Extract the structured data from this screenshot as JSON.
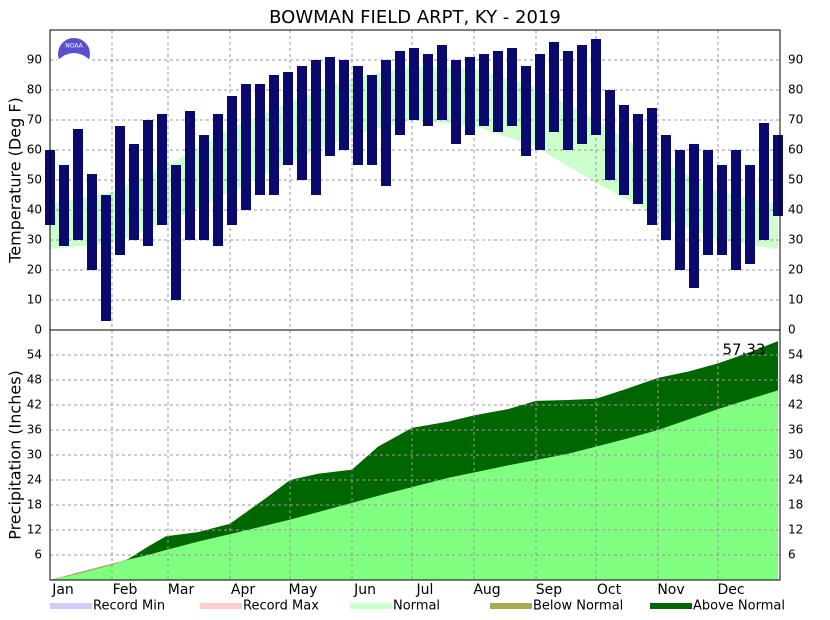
{
  "title": "BOWMAN FIELD ARPT, KY - 2019",
  "logo_text": "NOAA",
  "legend": [
    {
      "label": "Record Min",
      "color": "#ccccff"
    },
    {
      "label": "Record Max",
      "color": "#ffcccc"
    },
    {
      "label": "Normal",
      "color": "#ccffcc"
    },
    {
      "label": "Below Normal",
      "color": "#aaaa55"
    },
    {
      "label": "Above Normal",
      "color": "#006600"
    }
  ],
  "chart_data": [
    {
      "type": "range_bar",
      "ylabel": "Temperature (Deg F)",
      "xlim": [
        1,
        366
      ],
      "ylim": [
        0,
        100
      ],
      "yticks": [
        0,
        10,
        20,
        30,
        40,
        50,
        60,
        70,
        80,
        90
      ],
      "grid": true,
      "color": "#0a0a6e",
      "normal_color": "#ccffcc",
      "x": [
        1,
        8,
        15,
        22,
        29,
        36,
        43,
        50,
        57,
        64,
        71,
        78,
        85,
        92,
        99,
        106,
        113,
        120,
        127,
        134,
        141,
        148,
        155,
        162,
        169,
        176,
        183,
        190,
        197,
        204,
        211,
        218,
        225,
        232,
        239,
        246,
        253,
        260,
        267,
        274,
        281,
        288,
        295,
        302,
        309,
        316,
        323,
        330,
        337,
        344,
        351,
        358,
        365
      ],
      "high": [
        60,
        55,
        67,
        52,
        45,
        68,
        62,
        70,
        72,
        55,
        73,
        65,
        72,
        78,
        82,
        82,
        85,
        86,
        88,
        90,
        91,
        90,
        88,
        85,
        90,
        93,
        94,
        92,
        95,
        90,
        91,
        92,
        93,
        94,
        88,
        92,
        96,
        93,
        95,
        97,
        80,
        75,
        72,
        74,
        65,
        60,
        62,
        60,
        55,
        60,
        55,
        69,
        65
      ],
      "low": [
        35,
        28,
        30,
        20,
        3,
        25,
        30,
        28,
        35,
        10,
        30,
        30,
        28,
        35,
        40,
        45,
        45,
        55,
        50,
        45,
        58,
        60,
        55,
        55,
        48,
        65,
        70,
        68,
        70,
        62,
        65,
        68,
        66,
        68,
        58,
        60,
        66,
        60,
        62,
        65,
        50,
        45,
        42,
        35,
        30,
        20,
        14,
        25,
        25,
        20,
        22,
        30,
        38
      ],
      "normal_x": [
        1,
        32,
        60,
        91,
        121,
        152,
        182,
        213,
        244,
        274,
        305,
        335,
        365
      ],
      "normal_high": [
        42,
        46,
        55,
        67,
        76,
        84,
        88,
        87,
        81,
        70,
        57,
        46,
        42
      ],
      "normal_low": [
        27,
        29,
        36,
        46,
        56,
        65,
        70,
        68,
        61,
        49,
        38,
        30,
        27
      ]
    },
    {
      "type": "cumulative_area",
      "ylabel": "Precipitation (Inches)",
      "xlim": [
        1,
        366
      ],
      "ylim": [
        0,
        60
      ],
      "yticks": [
        6,
        12,
        18,
        24,
        30,
        36,
        42,
        48,
        54
      ],
      "xticks": [
        {
          "value": 1,
          "label": "Jan"
        },
        {
          "value": 32,
          "label": "Feb"
        },
        {
          "value": 60,
          "label": "Mar"
        },
        {
          "value": 91,
          "label": "Apr"
        },
        {
          "value": 121,
          "label": "May"
        },
        {
          "value": 152,
          "label": "Jun"
        },
        {
          "value": 182,
          "label": "Jul"
        },
        {
          "value": 213,
          "label": "Aug"
        },
        {
          "value": 244,
          "label": "Sep"
        },
        {
          "value": 274,
          "label": "Oct"
        },
        {
          "value": 305,
          "label": "Nov"
        },
        {
          "value": 335,
          "label": "Dec"
        }
      ],
      "grid": true,
      "normal_color": "#80ff80",
      "above_color": "#006600",
      "below_color": "#b8a060",
      "x": [
        1,
        15,
        31,
        40,
        50,
        59,
        75,
        91,
        110,
        121,
        135,
        152,
        165,
        182,
        200,
        213,
        230,
        244,
        260,
        274,
        290,
        305,
        320,
        335,
        350,
        365
      ],
      "observed": [
        0,
        1.5,
        3.5,
        5,
        8,
        10.5,
        11.5,
        13.5,
        20,
        24,
        25.5,
        26.5,
        32,
        36.5,
        38,
        39.5,
        41,
        43,
        43.2,
        43.5,
        46,
        48.5,
        50,
        52,
        54.5,
        57.33
      ],
      "normal": [
        0,
        1.8,
        3.8,
        4.9,
        6.0,
        7.2,
        9.2,
        11.0,
        13.2,
        14.5,
        16.3,
        18.5,
        20.2,
        22.3,
        24.5,
        25.8,
        27.5,
        28.8,
        30.3,
        32.0,
        34.0,
        36.0,
        38.5,
        41.0,
        43.3,
        45.5
      ],
      "total_label": 57.33
    }
  ]
}
